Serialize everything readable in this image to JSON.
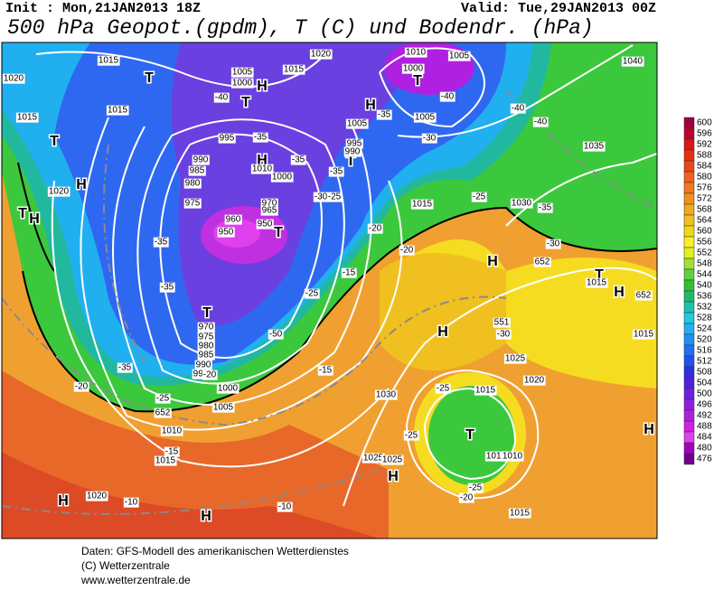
{
  "header": {
    "init": "Init : Mon,21JAN2013 18Z",
    "valid": "Valid: Tue,29JAN2013 00Z",
    "title": "500 hPa Geopot.(gpdm), T (C) und Bodendr. (hPa)"
  },
  "colorbar": {
    "levels": [
      600,
      596,
      592,
      588,
      584,
      580,
      576,
      572,
      568,
      564,
      560,
      556,
      552,
      548,
      544,
      540,
      536,
      532,
      528,
      524,
      520,
      516,
      512,
      508,
      504,
      500,
      496,
      492,
      488,
      484,
      480,
      476
    ],
    "colors": [
      "#a00040",
      "#c00030",
      "#d81818",
      "#e83010",
      "#e84818",
      "#f06020",
      "#f07820",
      "#f09020",
      "#f0a820",
      "#f0c020",
      "#f0d818",
      "#f8f020",
      "#e0f020",
      "#a0e030",
      "#60d040",
      "#30c030",
      "#20b870",
      "#20c0b0",
      "#20c8e0",
      "#20b0f0",
      "#2090f0",
      "#2070f0",
      "#2050f0",
      "#3030e0",
      "#5020e0",
      "#7020e0",
      "#9020e0",
      "#b020e0",
      "#d020e0",
      "#e040f0",
      "#a000c0",
      "#700090"
    ]
  },
  "map": {
    "labels": [
      "1015",
      "1020",
      "1015",
      "1015",
      "T",
      "T",
      "H",
      "1020",
      "T",
      "H",
      "1005",
      "1000",
      "1015",
      "1020",
      "H",
      "T",
      "-40",
      "-35",
      "995",
      "990",
      "985",
      "980",
      "975",
      "H",
      "1010",
      "1000",
      "-35",
      "970",
      "965",
      "960",
      "950",
      "950",
      "T",
      "-35",
      "-35",
      "T",
      "970",
      "975",
      "980",
      "985",
      "990",
      "995",
      "-35",
      "-20",
      "1000",
      "1005",
      "-25",
      "-20",
      "652",
      "1010",
      "-15",
      "1015",
      "1020",
      "-10",
      "-10",
      "H",
      "H",
      "-50",
      "-25",
      "-15",
      "T",
      "995",
      "990",
      "-35",
      "-30",
      "-25",
      "1005",
      "-35",
      "H",
      "1000",
      "T",
      "1010",
      "1005",
      "-40",
      "1005",
      "-30",
      "-40",
      "-40",
      "1040",
      "1035",
      "-35",
      "1030",
      "-25",
      "1015",
      "-20",
      "-20",
      "-15",
      "H",
      "652",
      "-30",
      "T",
      "1015",
      "H",
      "652",
      "1015",
      "551",
      "-30",
      "H",
      "1025",
      "1020",
      "-25",
      "1015",
      "1030",
      "T",
      "1010",
      "1010",
      "-25",
      "1025",
      "1025",
      "H",
      "-25",
      "-20",
      "1015",
      "H"
    ]
  },
  "footer": {
    "lines": [
      "Daten: GFS-Modell des amerikanischen Wetterdienstes",
      "(C) Wetterzentrale",
      "www.wetterzentrale.de"
    ]
  }
}
